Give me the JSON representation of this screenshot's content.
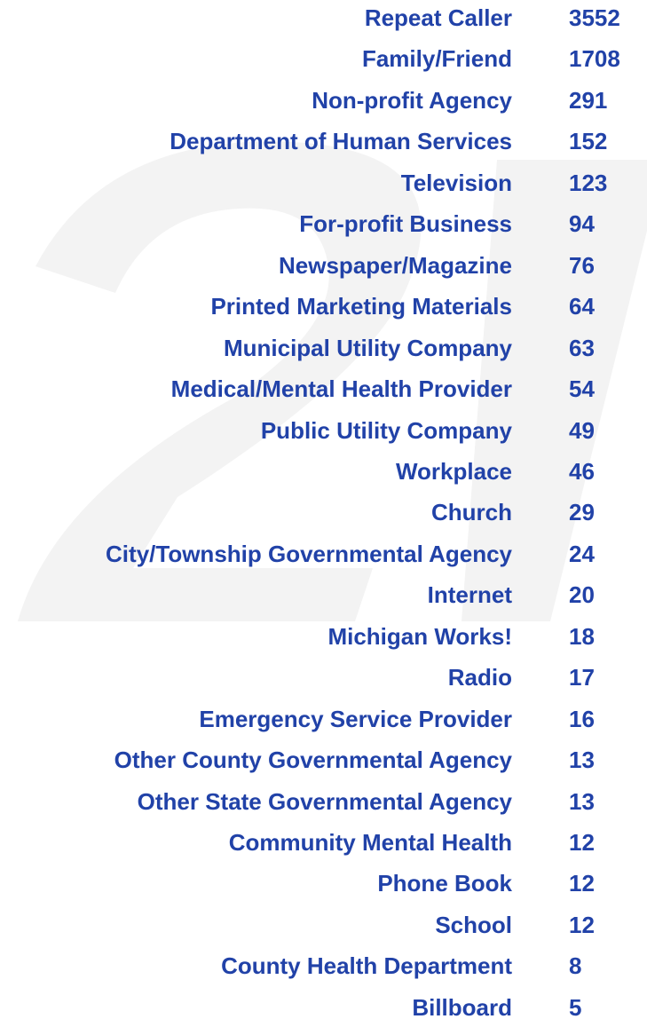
{
  "table": {
    "rows": [
      [
        "Repeat Caller",
        3552
      ],
      [
        "Family/Friend",
        1708
      ],
      [
        "Non-profit Agency",
        291
      ],
      [
        "Department of Human Services",
        152
      ],
      [
        "Television",
        123
      ],
      [
        "For-profit Business",
        94
      ],
      [
        "Newspaper/Magazine",
        76
      ],
      [
        "Printed Marketing Materials",
        64
      ],
      [
        "Municipal Utility Company",
        63
      ],
      [
        "Medical/Mental Health Provider",
        54
      ],
      [
        "Public Utility Company",
        49
      ],
      [
        "Workplace",
        46
      ],
      [
        "Church",
        29
      ],
      [
        "City/Township Governmental Agency",
        24
      ],
      [
        "Internet",
        20
      ],
      [
        "Michigan Works!",
        18
      ],
      [
        "Radio",
        17
      ],
      [
        "Emergency Service Provider",
        16
      ],
      [
        "Other County Governmental Agency",
        13
      ],
      [
        "Other State Governmental Agency",
        13
      ],
      [
        "Community Mental Health",
        12
      ],
      [
        "Phone Book",
        12
      ],
      [
        "School",
        12
      ],
      [
        "County Health Department",
        8
      ],
      [
        "Billboard",
        5
      ]
    ]
  }
}
